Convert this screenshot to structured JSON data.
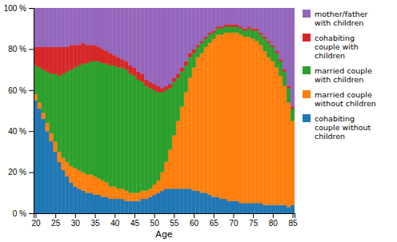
{
  "chart_data": {
    "type": "bar",
    "stacked": true,
    "xlabel": "Age",
    "x": [
      20,
      21,
      22,
      23,
      24,
      25,
      26,
      27,
      28,
      29,
      30,
      31,
      32,
      33,
      34,
      35,
      36,
      37,
      38,
      39,
      40,
      41,
      42,
      43,
      44,
      45,
      46,
      47,
      48,
      49,
      50,
      51,
      52,
      53,
      54,
      55,
      56,
      57,
      58,
      59,
      60,
      61,
      62,
      63,
      64,
      65,
      66,
      67,
      68,
      69,
      70,
      71,
      72,
      73,
      74,
      75,
      76,
      77,
      78,
      79,
      80,
      81,
      82,
      83,
      84,
      85
    ],
    "series": [
      {
        "name": "cohabiting\ncouple without\nchildren",
        "values": [
          55,
          51,
          46,
          40,
          35,
          30,
          25,
          21,
          18,
          15,
          13,
          12,
          11,
          10,
          10,
          9,
          9,
          8,
          8,
          7,
          7,
          7,
          7,
          6,
          6,
          6,
          6,
          7,
          7,
          8,
          9,
          10,
          11,
          12,
          12,
          12,
          12,
          12,
          12,
          12,
          11,
          11,
          10,
          10,
          9,
          8,
          8,
          7,
          7,
          6,
          6,
          6,
          5,
          5,
          5,
          5,
          5,
          5,
          4,
          4,
          4,
          4,
          4,
          4,
          3,
          4
        ]
      },
      {
        "name": "married couple\nwithout children",
        "values": [
          3,
          3,
          3,
          4,
          4,
          5,
          5,
          6,
          7,
          8,
          9,
          9,
          9,
          9,
          9,
          9,
          8,
          8,
          7,
          6,
          6,
          5,
          5,
          5,
          4,
          4,
          4,
          4,
          4,
          4,
          5,
          6,
          9,
          13,
          19,
          26,
          33,
          40,
          47,
          54,
          60,
          65,
          68,
          71,
          74,
          77,
          79,
          80,
          81,
          82,
          82,
          82,
          82,
          81,
          81,
          80,
          79,
          77,
          75,
          72,
          70,
          67,
          63,
          58,
          51,
          41
        ]
      },
      {
        "name": "married couple\nwith children",
        "values": [
          14,
          17,
          21,
          25,
          29,
          33,
          37,
          41,
          44,
          47,
          49,
          51,
          53,
          54,
          55,
          56,
          57,
          57,
          58,
          59,
          59,
          59,
          59,
          59,
          58,
          57,
          55,
          53,
          51,
          49,
          46,
          43,
          39,
          35,
          30,
          26,
          21,
          17,
          13,
          10,
          7,
          5,
          5,
          4,
          4,
          3,
          3,
          3,
          3,
          3,
          3,
          3,
          3,
          3,
          4,
          4,
          5,
          5,
          6,
          7,
          7,
          7,
          7,
          7,
          7,
          6
        ]
      },
      {
        "name": "cohabiting\ncouple with\nchildren",
        "values": [
          9,
          10,
          11,
          12,
          13,
          13,
          14,
          13,
          12,
          12,
          11,
          10,
          10,
          9,
          8,
          8,
          7,
          7,
          6,
          6,
          5,
          5,
          4,
          4,
          4,
          4,
          4,
          4,
          3,
          3,
          3,
          3,
          2,
          2,
          2,
          2,
          2,
          2,
          2,
          2,
          2,
          1,
          1,
          1,
          1,
          1,
          1,
          1,
          1,
          1,
          1,
          1,
          1,
          1,
          1,
          1,
          1,
          1,
          1,
          1,
          1,
          1,
          1,
          1,
          1,
          1
        ]
      },
      {
        "name": "mother/father\nwith children",
        "values": [
          19,
          19,
          19,
          19,
          19,
          19,
          19,
          19,
          19,
          18,
          18,
          18,
          17,
          18,
          18,
          18,
          19,
          20,
          21,
          22,
          23,
          24,
          25,
          26,
          28,
          29,
          31,
          32,
          35,
          36,
          37,
          38,
          39,
          38,
          37,
          34,
          32,
          29,
          26,
          22,
          20,
          18,
          16,
          14,
          12,
          11,
          9,
          9,
          8,
          8,
          8,
          8,
          9,
          10,
          9,
          10,
          10,
          12,
          14,
          16,
          18,
          21,
          25,
          30,
          38,
          48
        ]
      }
    ],
    "xlim": [
      19.5,
      85.5
    ],
    "xticks": [
      20,
      25,
      30,
      35,
      40,
      45,
      50,
      55,
      60,
      65,
      70,
      75,
      80,
      85
    ],
    "ylim": [
      0,
      100
    ],
    "yticks": [
      {
        "value": 0,
        "label": "0 %"
      },
      {
        "value": 20,
        "label": "20 %"
      },
      {
        "value": 40,
        "label": "40 %"
      },
      {
        "value": 60,
        "label": "60 %"
      },
      {
        "value": 80,
        "label": "80 %"
      },
      {
        "value": 100,
        "label": "100 %"
      }
    ],
    "grid": true,
    "legend": "right"
  }
}
